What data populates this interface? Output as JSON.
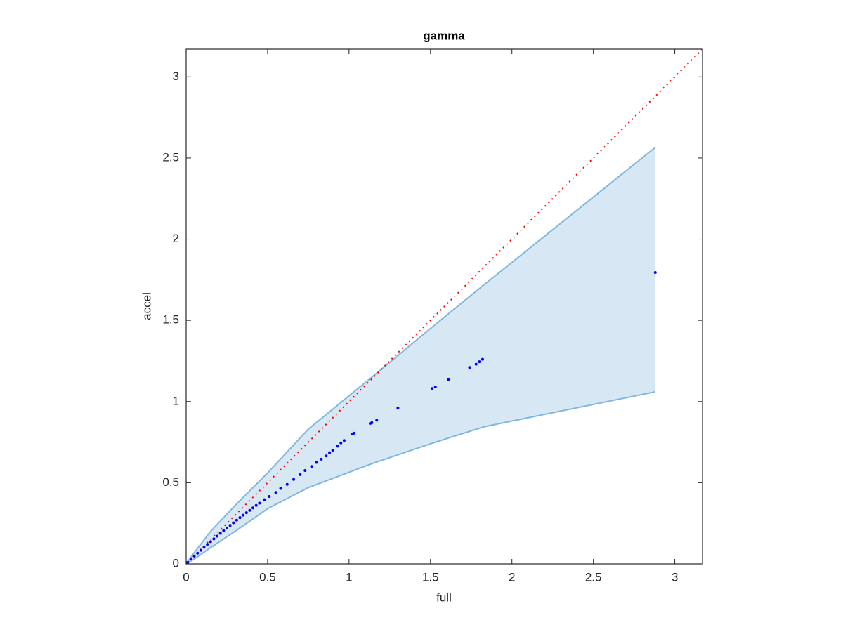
{
  "chart_data": {
    "type": "scatter",
    "title": "gamma",
    "xlabel": "full",
    "ylabel": "accel",
    "xlim": [
      0,
      3.17
    ],
    "ylim": [
      0,
      3.17
    ],
    "xticks": [
      0,
      0.5,
      1,
      1.5,
      2,
      2.5,
      3
    ],
    "yticks": [
      0,
      0.5,
      1,
      1.5,
      2,
      2.5,
      3
    ],
    "band": {
      "x": [
        0,
        0.05,
        0.15,
        0.3,
        0.5,
        0.75,
        1.14,
        1.5,
        1.83,
        2.88
      ],
      "upper": [
        0,
        0.07,
        0.2,
        0.36,
        0.56,
        0.83,
        1.15,
        1.45,
        1.72,
        2.565
      ],
      "lower": [
        0,
        0.03,
        0.1,
        0.2,
        0.34,
        0.47,
        0.617,
        0.74,
        0.845,
        1.06
      ],
      "color": "#7fb8dc",
      "fill": "#d8e7f4"
    },
    "reference": {
      "x": [
        0,
        3.17
      ],
      "y": [
        0,
        3.17
      ],
      "color": "#ff0000"
    },
    "points": {
      "color": "#0000ff",
      "x": [
        0.01,
        0.03,
        0.05,
        0.07,
        0.09,
        0.11,
        0.13,
        0.15,
        0.17,
        0.19,
        0.21,
        0.23,
        0.25,
        0.27,
        0.29,
        0.31,
        0.33,
        0.35,
        0.37,
        0.39,
        0.41,
        0.43,
        0.45,
        0.48,
        0.51,
        0.55,
        0.58,
        0.62,
        0.66,
        0.7,
        0.73,
        0.77,
        0.8,
        0.83,
        0.86,
        0.88,
        0.9,
        0.93,
        0.95,
        0.97,
        1.02,
        1.03,
        1.13,
        1.14,
        1.17,
        1.3,
        1.51,
        1.53,
        1.61,
        1.74,
        1.78,
        1.8,
        1.82,
        2.88
      ],
      "y": [
        0.01,
        0.03,
        0.048,
        0.066,
        0.084,
        0.102,
        0.12,
        0.137,
        0.154,
        0.171,
        0.188,
        0.205,
        0.221,
        0.237,
        0.253,
        0.269,
        0.285,
        0.3,
        0.315,
        0.33,
        0.345,
        0.36,
        0.374,
        0.395,
        0.415,
        0.44,
        0.465,
        0.49,
        0.52,
        0.55,
        0.575,
        0.6,
        0.625,
        0.645,
        0.665,
        0.685,
        0.7,
        0.725,
        0.745,
        0.76,
        0.8,
        0.805,
        0.865,
        0.87,
        0.885,
        0.96,
        1.08,
        1.09,
        1.135,
        1.21,
        1.23,
        1.245,
        1.26,
        1.795
      ]
    }
  }
}
